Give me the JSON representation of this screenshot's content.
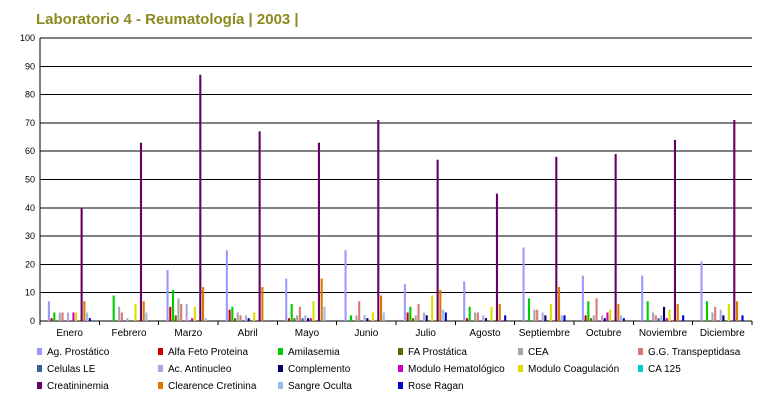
{
  "chart_data": {
    "type": "bar",
    "title": "Laboratorio 4 - Reumatología | 2003 |",
    "xlabel": "",
    "ylabel": "",
    "ylim": [
      0,
      100
    ],
    "yticks": [
      0,
      10,
      20,
      30,
      40,
      50,
      60,
      70,
      80,
      90,
      100
    ],
    "grid": true,
    "legend_position": "bottom",
    "categories": [
      "Enero",
      "Febrero",
      "Marzo",
      "Abril",
      "Mayo",
      "Junio",
      "Julio",
      "Agosto",
      "Septiembre",
      "Octubre",
      "Noviembre",
      "Diciembre"
    ],
    "series": [
      {
        "name": "Ag. Prostático",
        "color": "#9999ff",
        "values": [
          7,
          0,
          18,
          25,
          15,
          25,
          13,
          14,
          26,
          16,
          16,
          21
        ]
      },
      {
        "name": "Alfa Feto Proteina",
        "color": "#cc0000",
        "values": [
          1,
          0,
          5,
          4,
          1,
          0,
          3,
          1,
          0,
          2,
          0,
          0
        ]
      },
      {
        "name": "Amilasemia",
        "color": "#00cc00",
        "values": [
          3,
          9,
          11,
          5,
          6,
          2,
          5,
          5,
          8,
          7,
          7,
          7
        ]
      },
      {
        "name": "FA Prostática",
        "color": "#666600",
        "values": [
          0,
          0,
          2,
          1,
          1,
          0,
          1,
          0,
          0,
          1,
          0,
          0
        ]
      },
      {
        "name": "CEA",
        "color": "#a6a6a6",
        "values": [
          3,
          5,
          8,
          3,
          2,
          2,
          2,
          3,
          4,
          2,
          3,
          3
        ]
      },
      {
        "name": "G.G. Transpeptidasa",
        "color": "#dd7777",
        "values": [
          3,
          3,
          6,
          2,
          5,
          7,
          6,
          3,
          4,
          8,
          2,
          5
        ]
      },
      {
        "name": "Celulas LE",
        "color": "#336699",
        "values": [
          0,
          0,
          0,
          0,
          1,
          0,
          0,
          0,
          0,
          0,
          1,
          0
        ]
      },
      {
        "name": "Ac. Antinucleo",
        "color": "#aaaadd",
        "values": [
          3,
          1,
          6,
          2,
          2,
          2,
          3,
          2,
          3,
          2,
          2,
          4
        ]
      },
      {
        "name": "Complemento",
        "color": "#000066",
        "values": [
          0,
          0,
          0,
          1,
          1,
          1,
          2,
          1,
          2,
          1,
          5,
          2
        ]
      },
      {
        "name": "Modulo Hematológico",
        "color": "#cc00cc",
        "values": [
          3,
          0,
          1,
          0,
          1,
          0,
          0,
          0,
          0,
          3,
          1,
          0
        ]
      },
      {
        "name": "Modulo Coagulación",
        "color": "#dddd00",
        "values": [
          3,
          6,
          5,
          3,
          7,
          3,
          9,
          5,
          6,
          4,
          4,
          6
        ]
      },
      {
        "name": "CA 125",
        "color": "#00cccc",
        "values": [
          0,
          0,
          0,
          0,
          0,
          0,
          0,
          0,
          0,
          0,
          0,
          0
        ]
      },
      {
        "name": "Creatininemia",
        "color": "#660066",
        "values": [
          40,
          63,
          87,
          67,
          63,
          71,
          57,
          45,
          58,
          59,
          64,
          71
        ]
      },
      {
        "name": "Clearence Cretinina",
        "color": "#dd7700",
        "values": [
          7,
          7,
          12,
          12,
          15,
          9,
          11,
          6,
          12,
          6,
          6,
          7
        ]
      },
      {
        "name": "Sangre Oculta",
        "color": "#99bbee",
        "values": [
          3,
          3,
          1,
          0,
          5,
          3,
          4,
          0,
          2,
          2,
          0,
          0
        ]
      },
      {
        "name": "Rose Ragan",
        "color": "#0000cc",
        "values": [
          1,
          0,
          0,
          0,
          0,
          0,
          3,
          2,
          2,
          1,
          2,
          2
        ]
      }
    ]
  }
}
